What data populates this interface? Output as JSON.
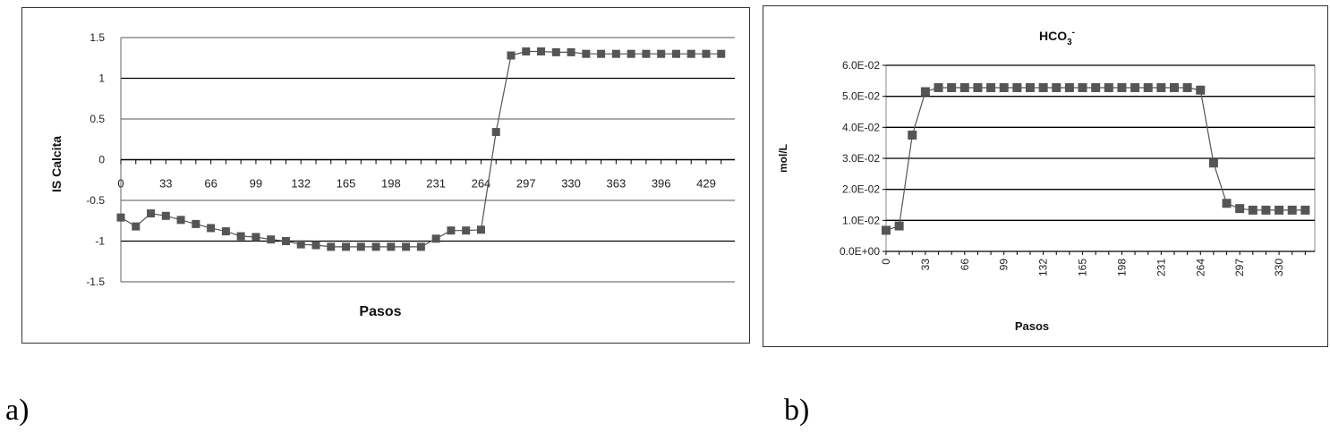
{
  "panels": {
    "a_label": "a)",
    "b_label": "b)"
  },
  "chart_data": [
    {
      "type": "line",
      "title": "",
      "xlabel": "Pasos",
      "ylabel": "IS Calcita",
      "ylim": [
        -1.5,
        1.5
      ],
      "yticks": [
        "1.5",
        "1",
        "0.5",
        "0",
        "-0.5",
        "-1",
        "-1.5"
      ],
      "x_tick_labels": [
        "0",
        "33",
        "66",
        "99",
        "132",
        "165",
        "198",
        "231",
        "264",
        "297",
        "330",
        "363",
        "396",
        "429"
      ],
      "x_tick_step": 33,
      "xlim": [
        0,
        450
      ],
      "grid": true,
      "marker": "square",
      "color": "#555555",
      "series": [
        {
          "x": [
            0,
            11,
            22,
            33,
            44,
            55,
            66,
            77,
            88,
            99,
            110,
            121,
            132,
            143,
            154,
            165,
            176,
            187,
            198,
            209,
            220,
            231,
            242,
            253,
            264,
            275,
            286,
            297,
            308,
            319,
            330,
            341,
            352,
            363,
            374,
            385,
            396,
            407,
            418,
            429,
            440
          ],
          "values": [
            -0.71,
            -0.82,
            -0.66,
            -0.69,
            -0.74,
            -0.79,
            -0.84,
            -0.88,
            -0.94,
            -0.95,
            -0.98,
            -1.0,
            -1.04,
            -1.05,
            -1.07,
            -1.07,
            -1.07,
            -1.07,
            -1.07,
            -1.07,
            -1.07,
            -0.97,
            -0.87,
            -0.87,
            -0.86,
            0.34,
            1.28,
            1.33,
            1.33,
            1.32,
            1.32,
            1.3,
            1.3,
            1.3,
            1.3,
            1.3,
            1.3,
            1.3,
            1.3,
            1.3,
            1.3
          ]
        }
      ]
    },
    {
      "type": "line",
      "title": "HCO3-",
      "title_main": "HCO",
      "title_sub": "3",
      "title_sup": "-",
      "xlabel": "Pasos",
      "ylabel": "mol/L",
      "ylim": [
        0,
        0.06
      ],
      "yticks": [
        "6.0E-02",
        "5.0E-02",
        "4.0E-02",
        "3.0E-02",
        "2.0E-02",
        "1.0E-02",
        "0.0E+00"
      ],
      "x_tick_labels": [
        "0",
        "33",
        "66",
        "99",
        "132",
        "165",
        "198",
        "231",
        "264",
        "297",
        "330"
      ],
      "x_tick_step": 33,
      "xlim": [
        0,
        360
      ],
      "grid": true,
      "marker": "square",
      "color": "#555555",
      "series": [
        {
          "x": [
            0,
            11,
            22,
            33,
            44,
            55,
            66,
            77,
            88,
            99,
            110,
            121,
            132,
            143,
            154,
            165,
            176,
            187,
            198,
            209,
            220,
            231,
            242,
            253,
            264,
            275,
            286,
            297,
            308,
            319,
            330,
            341,
            352
          ],
          "values": [
            0.0068,
            0.0082,
            0.0375,
            0.0515,
            0.0528,
            0.0528,
            0.0528,
            0.0528,
            0.0528,
            0.0528,
            0.0528,
            0.0528,
            0.0528,
            0.0528,
            0.0528,
            0.0528,
            0.0528,
            0.0528,
            0.0528,
            0.0528,
            0.0528,
            0.0528,
            0.0528,
            0.0528,
            0.052,
            0.0285,
            0.0155,
            0.0138,
            0.0133,
            0.0133,
            0.0133,
            0.0133,
            0.0133
          ]
        }
      ]
    }
  ]
}
